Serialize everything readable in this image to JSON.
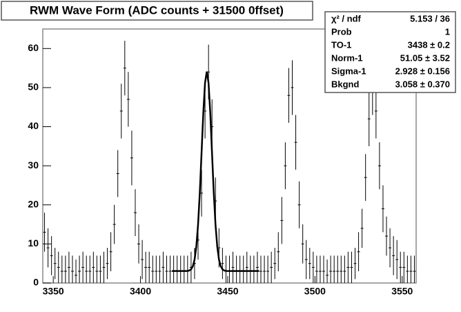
{
  "chart_data": {
    "type": "errorbar",
    "title": "RWM Wave Form (ADC counts + 31500 0ffset)",
    "color": "#000000",
    "xlim": [
      3344,
      3558
    ],
    "xticks": [
      3350,
      3400,
      3450,
      3500,
      3550
    ],
    "ylim": [
      0,
      65
    ],
    "yticks": [
      0,
      10,
      20,
      30,
      40,
      50,
      60
    ],
    "x": [
      3345,
      3347,
      3349,
      3351,
      3353,
      3355,
      3357,
      3359,
      3361,
      3363,
      3365,
      3367,
      3369,
      3371,
      3373,
      3375,
      3377,
      3379,
      3381,
      3383,
      3385,
      3387,
      3389,
      3391,
      3393,
      3395,
      3397,
      3399,
      3401,
      3403,
      3405,
      3407,
      3409,
      3411,
      3413,
      3415,
      3417,
      3419,
      3421,
      3423,
      3425,
      3427,
      3429,
      3431,
      3433,
      3435,
      3437,
      3439,
      3441,
      3443,
      3445,
      3447,
      3449,
      3451,
      3453,
      3455,
      3457,
      3459,
      3461,
      3463,
      3465,
      3467,
      3469,
      3471,
      3473,
      3475,
      3477,
      3479,
      3481,
      3483,
      3485,
      3487,
      3489,
      3491,
      3493,
      3495,
      3497,
      3499,
      3501,
      3503,
      3505,
      3507,
      3509,
      3511,
      3513,
      3515,
      3517,
      3519,
      3521,
      3523,
      3525,
      3527,
      3529,
      3531,
      3533,
      3535,
      3537,
      3539,
      3541,
      3543,
      3545,
      3547,
      3549,
      3551,
      3553,
      3555,
      3557
    ],
    "values": [
      13,
      9,
      7,
      5,
      4,
      3,
      3,
      4,
      3,
      2,
      3,
      4,
      3,
      3,
      4,
      3,
      3,
      4,
      5,
      8,
      15,
      28,
      44,
      55,
      47,
      32,
      18,
      10,
      6,
      4,
      4,
      3,
      3,
      3,
      4,
      3,
      3,
      3,
      3,
      3,
      3,
      3,
      4,
      5,
      11,
      23,
      44,
      54,
      40,
      21,
      9,
      5,
      3,
      3,
      4,
      3,
      3,
      3,
      4,
      3,
      3,
      4,
      3,
      3,
      3,
      4,
      5,
      8,
      16,
      30,
      48,
      50,
      36,
      20,
      10,
      6,
      5,
      4,
      3,
      3,
      3,
      2,
      3,
      3,
      3,
      3,
      3,
      4,
      4,
      5,
      8,
      14,
      27,
      42,
      50,
      44,
      30,
      19,
      12,
      9,
      7,
      6,
      4,
      4,
      3,
      3,
      3
    ],
    "errors": [
      5,
      5,
      5,
      4,
      4,
      4,
      4,
      4,
      4,
      4,
      4,
      4,
      4,
      4,
      4,
      4,
      4,
      4,
      4,
      5,
      5,
      6,
      7,
      7,
      7,
      7,
      6,
      5,
      5,
      4,
      4,
      4,
      4,
      4,
      4,
      4,
      4,
      4,
      4,
      4,
      4,
      4,
      4,
      4,
      5,
      6,
      7,
      7,
      7,
      6,
      5,
      4,
      4,
      4,
      4,
      4,
      4,
      4,
      4,
      4,
      4,
      4,
      4,
      4,
      4,
      4,
      4,
      5,
      6,
      6,
      7,
      7,
      7,
      6,
      5,
      5,
      4,
      4,
      4,
      4,
      4,
      4,
      4,
      4,
      4,
      4,
      4,
      4,
      4,
      4,
      5,
      5,
      6,
      7,
      7,
      7,
      6,
      6,
      5,
      5,
      5,
      5,
      4,
      4,
      4,
      4,
      4
    ],
    "fit": {
      "color": "#000000",
      "x": [
        3418,
        3420,
        3422,
        3424,
        3426,
        3427,
        3428,
        3429,
        3430,
        3431,
        3432,
        3433,
        3434,
        3435,
        3436,
        3437,
        3438,
        3439,
        3440,
        3441,
        3442,
        3443,
        3444,
        3445,
        3446,
        3447,
        3448,
        3449,
        3450,
        3452,
        3456,
        3460,
        3464,
        3468
      ],
      "values": [
        3.06,
        3.06,
        3.06,
        3.06,
        3.07,
        3.1,
        3.21,
        3.51,
        4.28,
        5.99,
        9.31,
        14.94,
        23.14,
        33.26,
        43.49,
        51.22,
        54.11,
        51.22,
        43.49,
        33.26,
        23.14,
        14.94,
        9.31,
        5.99,
        4.28,
        3.51,
        3.21,
        3.1,
        3.07,
        3.06,
        3.06,
        3.06,
        3.06,
        3.06
      ]
    },
    "stats": [
      [
        "χ² / ndf",
        "5.153 / 36"
      ],
      [
        "Prob",
        "1"
      ],
      [
        "TO-1",
        "3438 ± 0.2"
      ],
      [
        "Norm-1",
        "51.05 ± 3.52"
      ],
      [
        "Sigma-1",
        "2.928 ± 0.156"
      ],
      [
        "Bkgnd",
        "3.058 ± 0.370"
      ]
    ]
  }
}
